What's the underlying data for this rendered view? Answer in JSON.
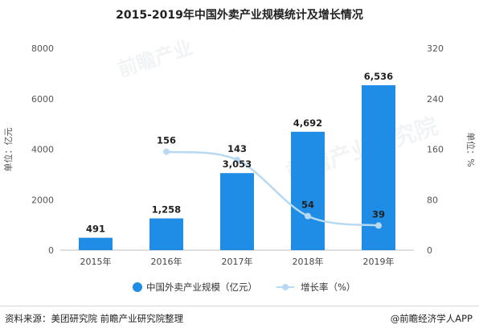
{
  "chart_data": {
    "type": "bar",
    "title": "2015-2019年中国外卖产业规模统计及增长情况",
    "categories": [
      "2015年",
      "2016年",
      "2017年",
      "2018年",
      "2019年"
    ],
    "series": [
      {
        "name": "中国外卖产业规模（亿元）",
        "type": "bar",
        "axis": "left",
        "color": "#1f8ce5",
        "values": [
          491,
          1258,
          3053,
          4692,
          6536
        ],
        "labels": [
          "491",
          "1,258",
          "3,053",
          "4,692",
          "6,536"
        ]
      },
      {
        "name": "增长率（%）",
        "type": "line",
        "axis": "right",
        "color": "#b7d9f2",
        "x": [
          "2016年",
          "2017年",
          "2018年",
          "2019年"
        ],
        "values": [
          156,
          143,
          54,
          39
        ],
        "labels": [
          "156",
          "143",
          "54",
          "39"
        ]
      }
    ],
    "ylabel": "单位：亿元",
    "y2label": "单位：%",
    "ylim": [
      0,
      8000
    ],
    "y2lim": [
      0,
      320
    ],
    "yticks": [
      "0",
      "2000",
      "4000",
      "6000",
      "8000"
    ],
    "y2ticks": [
      "0",
      "80",
      "160",
      "240",
      "320"
    ],
    "grid": false,
    "legend_position": "bottom"
  },
  "footer": {
    "source": "资料来源：美团研究院 前瞻产业研究院整理",
    "credit": "@前瞻经济学人APP"
  }
}
